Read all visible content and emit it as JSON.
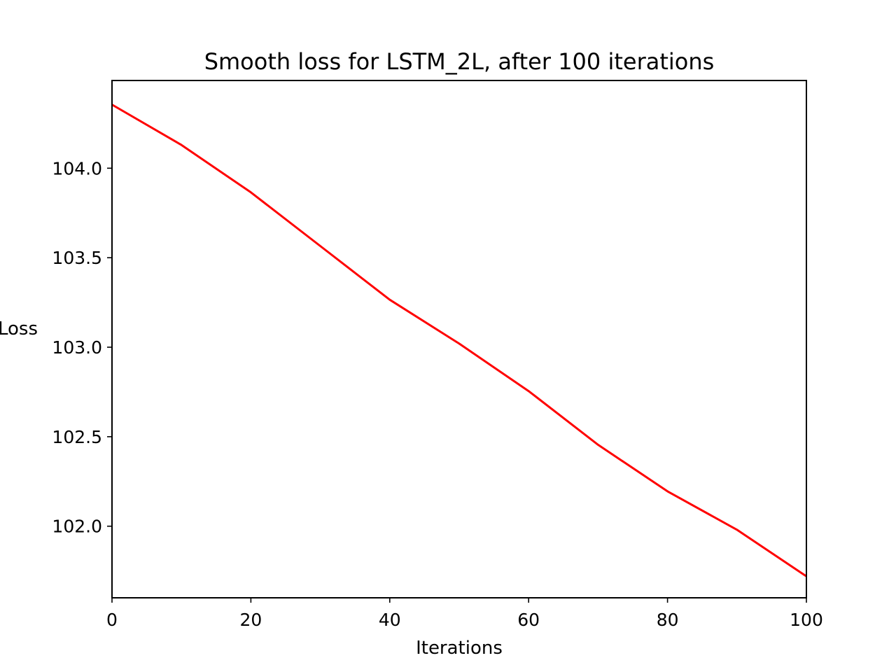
{
  "chart_data": {
    "type": "line",
    "title": "Smooth loss for LSTM_2L, after 100 iterations",
    "xlabel": "Iterations",
    "ylabel": "Loss",
    "xlim": [
      0,
      100
    ],
    "ylim": [
      101.6,
      104.49
    ],
    "x_ticks": [
      0,
      20,
      40,
      60,
      80,
      100
    ],
    "x_tick_labels": [
      "0",
      "20",
      "40",
      "60",
      "80",
      "100"
    ],
    "y_ticks": [
      102.0,
      102.5,
      103.0,
      103.5,
      104.0
    ],
    "y_tick_labels": [
      "102.0",
      "102.5",
      "103.0",
      "103.5",
      "104.0"
    ],
    "grid": false,
    "series": [
      {
        "color": "#ff0000",
        "x": [
          0,
          10,
          20,
          30,
          40,
          50,
          60,
          70,
          80,
          90,
          100
        ],
        "y": [
          104.355,
          104.13,
          103.865,
          103.565,
          103.265,
          103.02,
          102.755,
          102.455,
          102.195,
          101.98,
          101.72
        ]
      }
    ]
  }
}
